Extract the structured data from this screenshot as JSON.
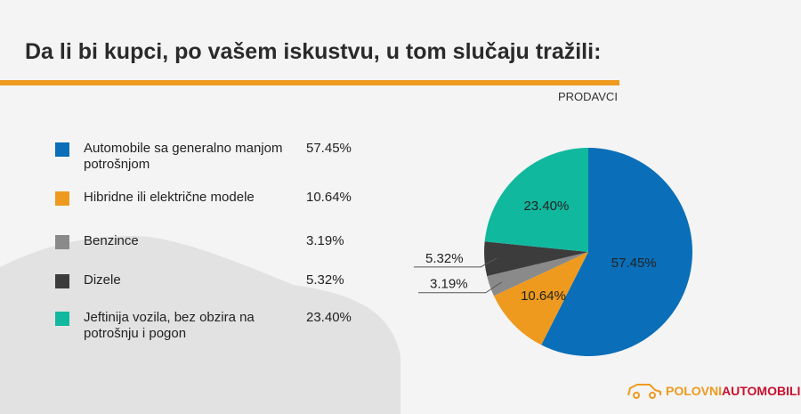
{
  "title": "Da li bi kupci, po vašem iskustvu, u tom slučaju tražili:",
  "subtitle": "PRODAVCI",
  "logo": {
    "part1": "POLOVNI",
    "part2": "AUTOMOBILI",
    "colors": [
      "#ee9a1e",
      "#c8102e"
    ]
  },
  "chart_data": {
    "type": "pie",
    "start": "12 o'clock, clockwise",
    "categories": [
      "Automobile sa generalno manjom potrošnjom",
      "Hibridne ili električne modele",
      "Benzince",
      "Dizele",
      "Jeftinija vozila, bez obzira na potrošnju i pogon"
    ],
    "values": [
      57.45,
      10.64,
      3.19,
      5.32,
      23.4
    ],
    "labels": [
      "57.45%",
      "10.64%",
      "3.19%",
      "5.32%",
      "23.40%"
    ],
    "colors": [
      "#0a6eb8",
      "#ee9a1e",
      "#8a8a8a",
      "#3c3c3c",
      "#10b89e"
    ],
    "legend_placement": "left"
  }
}
